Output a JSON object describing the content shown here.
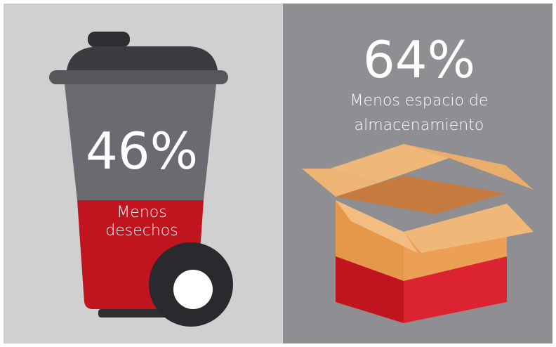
{
  "panels": [
    {
      "value": "46%",
      "label_lines": [
        "Menos",
        "desechos"
      ]
    },
    {
      "value": "64%",
      "label_lines": [
        "Menos espacio de",
        "almacenamiento"
      ]
    }
  ]
}
